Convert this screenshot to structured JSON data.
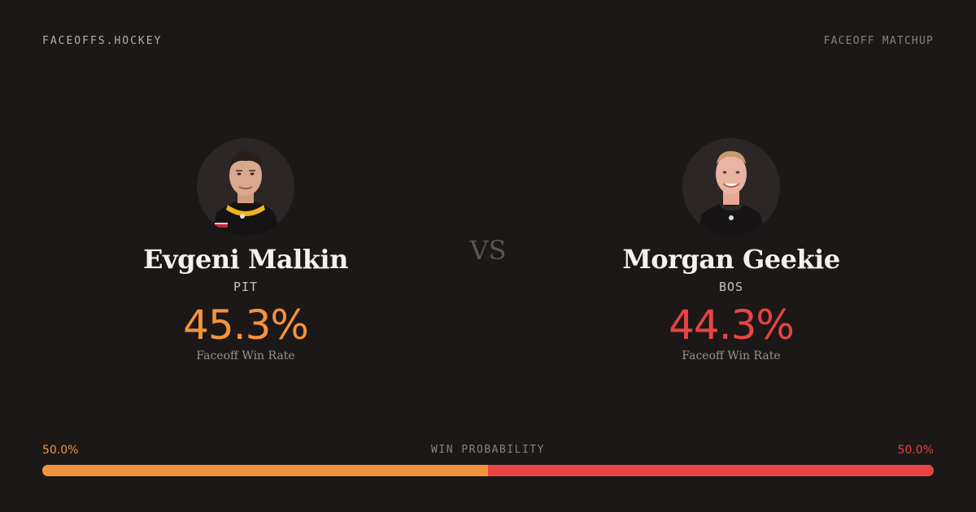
{
  "header": {
    "brand": "FACEOFFS.HOCKEY",
    "right_label": "FACEOFF MATCHUP"
  },
  "colors": {
    "left_accent": "#f5923e",
    "right_accent": "#e94343"
  },
  "players": {
    "left": {
      "name": "Evgeni Malkin",
      "team": "PIT",
      "win_rate": "45.3%",
      "win_rate_label": "Faceoff Win Rate",
      "photo_icon": "player-headshot"
    },
    "right": {
      "name": "Morgan Geekie",
      "team": "BOS",
      "win_rate": "44.3%",
      "win_rate_label": "Faceoff Win Rate",
      "photo_icon": "player-headshot"
    }
  },
  "vs_label": "VS",
  "win_probability": {
    "title": "WIN PROBABILITY",
    "left_label": "50.0%",
    "right_label": "50.0%",
    "left_fraction": 0.5,
    "right_fraction": 0.5
  }
}
